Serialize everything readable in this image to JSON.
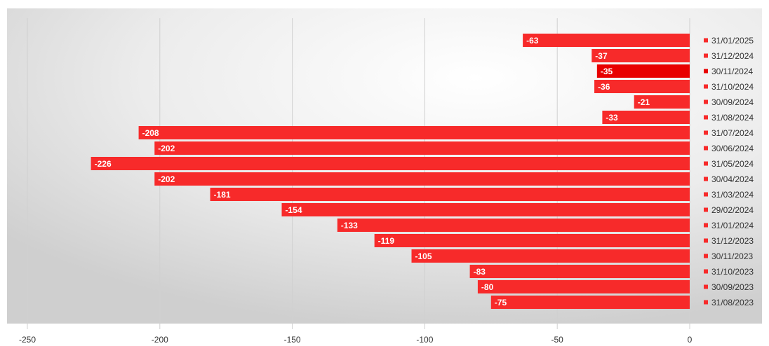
{
  "chart_data": {
    "type": "bar",
    "orientation": "horizontal",
    "title": "",
    "xlabel": "",
    "ylabel": "",
    "xlim": [
      -250,
      0
    ],
    "x_ticks": [
      -250,
      -200,
      -150,
      -100,
      -50,
      0
    ],
    "grid": "vertical",
    "legend_position": "right",
    "categories": [
      "31/01/2025",
      "31/12/2024",
      "30/11/2024",
      "31/10/2024",
      "30/09/2024",
      "31/08/2024",
      "31/07/2024",
      "30/06/2024",
      "31/05/2024",
      "30/04/2024",
      "31/03/2024",
      "29/02/2024",
      "31/01/2024",
      "31/12/2023",
      "30/11/2023",
      "31/10/2023",
      "30/09/2023",
      "31/08/2023"
    ],
    "values": [
      -63,
      -37,
      -35,
      -36,
      -21,
      -33,
      -208,
      -202,
      -226,
      -202,
      -181,
      -154,
      -133,
      -119,
      -105,
      -83,
      -80,
      -75
    ],
    "colors": {
      "bar": "#f72a2a",
      "highlight": "#e80000",
      "highlight_category": "30/11/2024",
      "gridline": "#d0d0d0",
      "plot_bg_light": "#ffffff",
      "plot_bg_dark": "#d6d6d6"
    }
  }
}
